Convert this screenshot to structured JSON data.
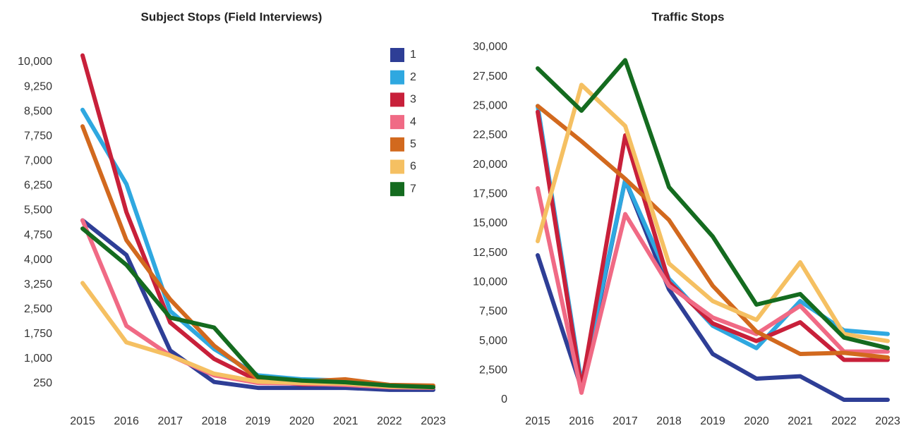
{
  "chart_data": [
    {
      "type": "line",
      "title": "Subject Stops (Field Interviews)",
      "x": [
        "2015",
        "2016",
        "2017",
        "2018",
        "2019",
        "2020",
        "2021",
        "2022",
        "2023"
      ],
      "ylim": [
        0,
        10500
      ],
      "yticks": [
        250,
        {
          "value": 1000,
          "label": "1,000"
        },
        {
          "value": 1750,
          "label": "1,750"
        },
        {
          "value": 2500,
          "label": "2,500"
        },
        {
          "value": 3250,
          "label": "3,250"
        },
        {
          "value": 4000,
          "label": "4,000"
        },
        {
          "value": 4750,
          "label": "4,750"
        },
        {
          "value": 5500,
          "label": "5,500"
        },
        {
          "value": 6250,
          "label": "6,250"
        },
        {
          "value": 7000,
          "label": "7,000"
        },
        {
          "value": 7750,
          "label": "7,750"
        },
        {
          "value": 8500,
          "label": "8,500"
        },
        {
          "value": 9250,
          "label": "9,250"
        },
        {
          "value": 10000,
          "label": "10,000"
        }
      ],
      "legend": "top-right",
      "series": [
        {
          "name": "1",
          "color": "#2e3e96",
          "values": [
            5200,
            4150,
            1250,
            300,
            120,
            120,
            120,
            60,
            60
          ]
        },
        {
          "name": "2",
          "color": "#2fa8e0",
          "values": [
            8550,
            6300,
            2450,
            1300,
            500,
            380,
            340,
            190,
            140
          ]
        },
        {
          "name": "3",
          "color": "#c8203a",
          "values": [
            10200,
            5450,
            2100,
            1000,
            340,
            230,
            230,
            140,
            140
          ]
        },
        {
          "name": "4",
          "color": "#f06a85",
          "values": [
            5200,
            2000,
            1100,
            500,
            270,
            250,
            210,
            140,
            120
          ]
        },
        {
          "name": "5",
          "color": "#d2691e",
          "values": [
            8050,
            4600,
            2800,
            1400,
            400,
            310,
            380,
            210,
            190
          ]
        },
        {
          "name": "6",
          "color": "#f5c062",
          "values": [
            3300,
            1500,
            1100,
            550,
            310,
            270,
            250,
            160,
            140
          ]
        },
        {
          "name": "7",
          "color": "#146b1f",
          "values": [
            4950,
            3850,
            2250,
            1950,
            450,
            340,
            290,
            190,
            140
          ]
        }
      ]
    },
    {
      "type": "line",
      "title": "Traffic Stops",
      "x": [
        "2015",
        "2016",
        "2017",
        "2018",
        "2019",
        "2020",
        "2021",
        "2022",
        "2023"
      ],
      "ylim": [
        0,
        30000
      ],
      "yticks": [
        0,
        {
          "value": 2500,
          "label": "2,500"
        },
        {
          "value": 5000,
          "label": "5,000"
        },
        {
          "value": 7500,
          "label": "7,500"
        },
        {
          "value": 10000,
          "label": "10,000"
        },
        {
          "value": 12500,
          "label": "12,500"
        },
        {
          "value": 15000,
          "label": "15,000"
        },
        {
          "value": 17500,
          "label": "17,500"
        },
        {
          "value": 20000,
          "label": "20,000"
        },
        {
          "value": 22500,
          "label": "22,500"
        },
        {
          "value": 25000,
          "label": "25,000"
        },
        {
          "value": 27500,
          "label": "27,500"
        },
        {
          "value": 30000,
          "label": "30,000"
        }
      ],
      "series": [
        {
          "color": "#2e3e96",
          "values": [
            12300,
            1000,
            18700,
            9400,
            3900,
            1800,
            2000,
            0,
            0
          ]
        },
        {
          "color": "#2fa8e0",
          "values": [
            25000,
            1400,
            18700,
            10300,
            6300,
            4400,
            8400,
            5900,
            5600
          ]
        },
        {
          "color": "#c8203a",
          "values": [
            24500,
            1000,
            22500,
            10000,
            6500,
            5000,
            6600,
            3400,
            3400
          ]
        },
        {
          "color": "#f06a85",
          "values": [
            18000,
            600,
            15800,
            9700,
            7000,
            5600,
            8000,
            4100,
            4100
          ]
        },
        {
          "color": "#d2691e",
          "values": [
            25000,
            22000,
            18800,
            15300,
            9700,
            5800,
            3900,
            4000,
            3600
          ]
        },
        {
          "color": "#f5c062",
          "values": [
            13500,
            26800,
            23300,
            11600,
            8400,
            6800,
            11700,
            5600,
            5000
          ]
        },
        {
          "color": "#146b1f",
          "values": [
            28200,
            24600,
            28900,
            18100,
            13900,
            8100,
            9000,
            5300,
            4400
          ]
        }
      ]
    }
  ]
}
